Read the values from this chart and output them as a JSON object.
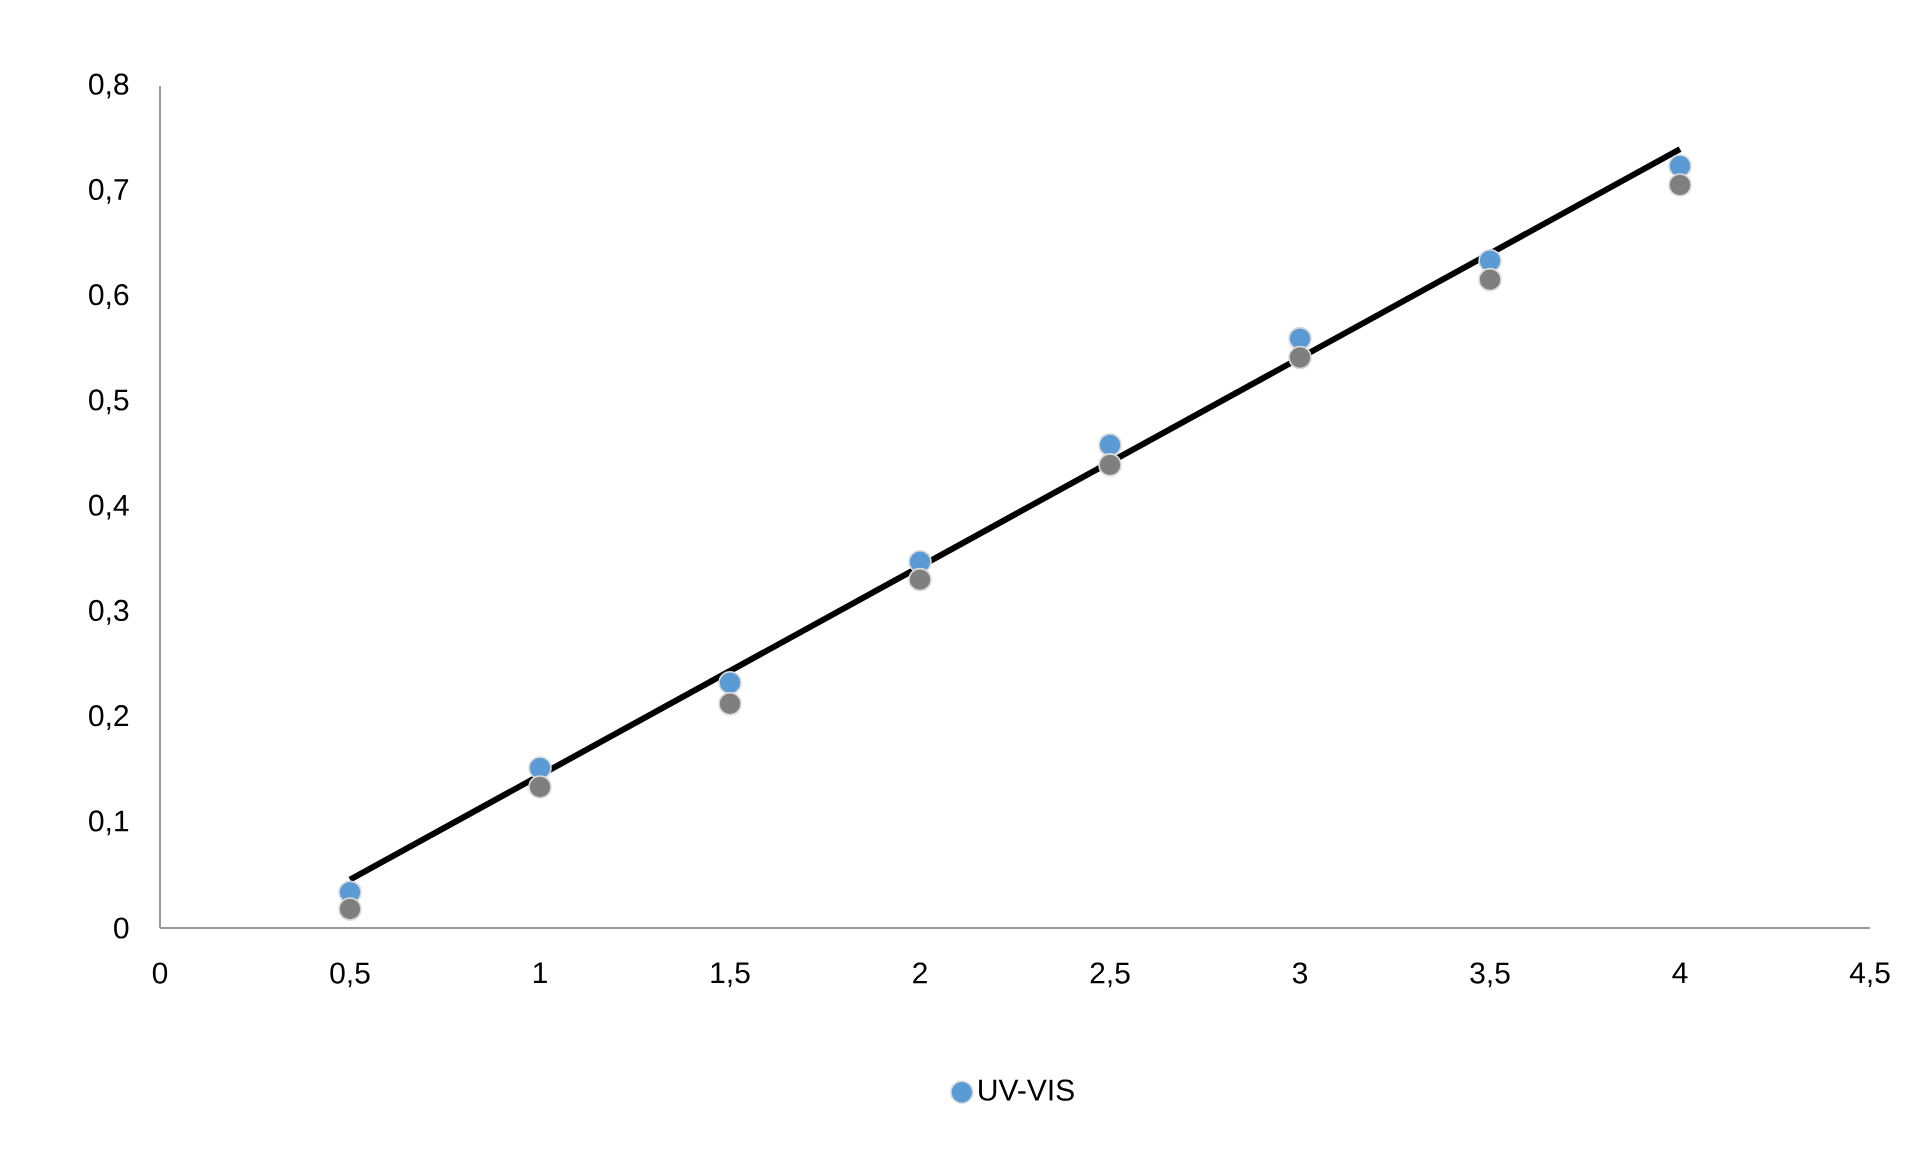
{
  "chart_data": {
    "type": "scatter",
    "xlim": [
      0,
      4.5
    ],
    "ylim": [
      0,
      0.8
    ],
    "xticks": [
      {
        "value": 0,
        "label": "0"
      },
      {
        "value": 0.5,
        "label": "0,5"
      },
      {
        "value": 1,
        "label": "1"
      },
      {
        "value": 1.5,
        "label": "1,5"
      },
      {
        "value": 2,
        "label": "2"
      },
      {
        "value": 2.5,
        "label": "2,5"
      },
      {
        "value": 3,
        "label": "3"
      },
      {
        "value": 3.5,
        "label": "3,5"
      },
      {
        "value": 4,
        "label": "4"
      },
      {
        "value": 4.5,
        "label": "4,5"
      }
    ],
    "yticks": [
      {
        "value": 0,
        "label": "0"
      },
      {
        "value": 0.1,
        "label": "0,1"
      },
      {
        "value": 0.2,
        "label": "0,2"
      },
      {
        "value": 0.3,
        "label": "0,3"
      },
      {
        "value": 0.4,
        "label": "0,4"
      },
      {
        "value": 0.5,
        "label": "0,5"
      },
      {
        "value": 0.6,
        "label": "0,6"
      },
      {
        "value": 0.7,
        "label": "0,7"
      },
      {
        "value": 0.8,
        "label": "0,8"
      }
    ],
    "legend": "bottom",
    "series": [
      {
        "name": "UV-VIS",
        "marker": "circle",
        "color": "#5b9bd5",
        "x": [
          0.5,
          1,
          1.5,
          2,
          2.5,
          3,
          3.5,
          4
        ],
        "values": [
          0.034,
          0.152,
          0.233,
          0.348,
          0.459,
          0.56,
          0.634,
          0.724
        ]
      },
      {
        "marker": "circle",
        "color": "#7f7f7f",
        "x": [
          0.5,
          1,
          1.5,
          2,
          2.5,
          3,
          3.5,
          4
        ],
        "values": [
          0.018,
          0.134,
          0.213,
          0.331,
          0.44,
          0.542,
          0.616,
          0.706
        ]
      },
      {
        "type": "line",
        "marker": "none",
        "color": "#000000",
        "x": [
          0.5,
          4
        ],
        "values": [
          0.046,
          0.74
        ]
      }
    ]
  }
}
